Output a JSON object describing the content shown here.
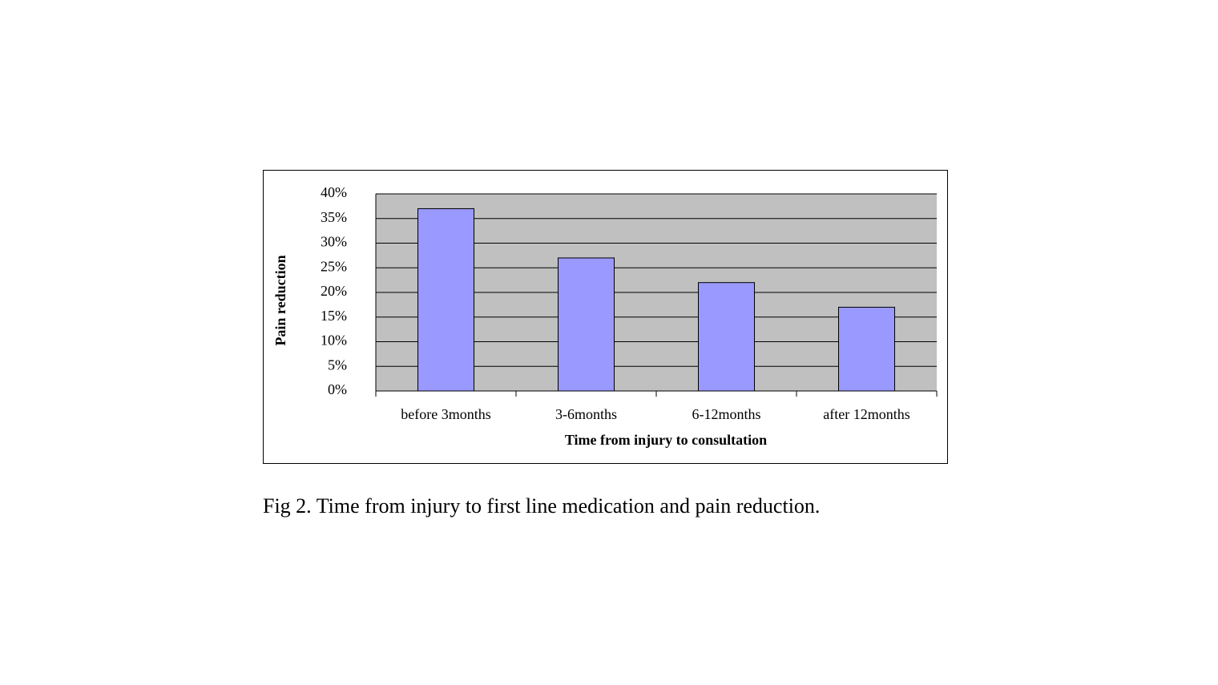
{
  "chart_data": {
    "type": "bar",
    "x_label": "Time from injury to consultation",
    "y_label": "Pain reduction",
    "caption": "Fig 2. Time from injury to first line medication and pain reduction.",
    "categories": [
      "before 3months",
      "3-6months",
      "6-12months",
      "after 12months"
    ],
    "values": [
      37,
      27,
      22,
      17
    ],
    "color": "#9999ff",
    "ylim": [
      0,
      40
    ],
    "yticks": [
      {
        "value": 0,
        "label": "0%"
      },
      {
        "value": 5,
        "label": "5%"
      },
      {
        "value": 10,
        "label": "10%"
      },
      {
        "value": 15,
        "label": "15%"
      },
      {
        "value": 20,
        "label": "20%"
      },
      {
        "value": 25,
        "label": "25%"
      },
      {
        "value": 30,
        "label": "30%"
      },
      {
        "value": 35,
        "label": "35%"
      },
      {
        "value": 40,
        "label": "40%"
      }
    ],
    "grid": true
  }
}
